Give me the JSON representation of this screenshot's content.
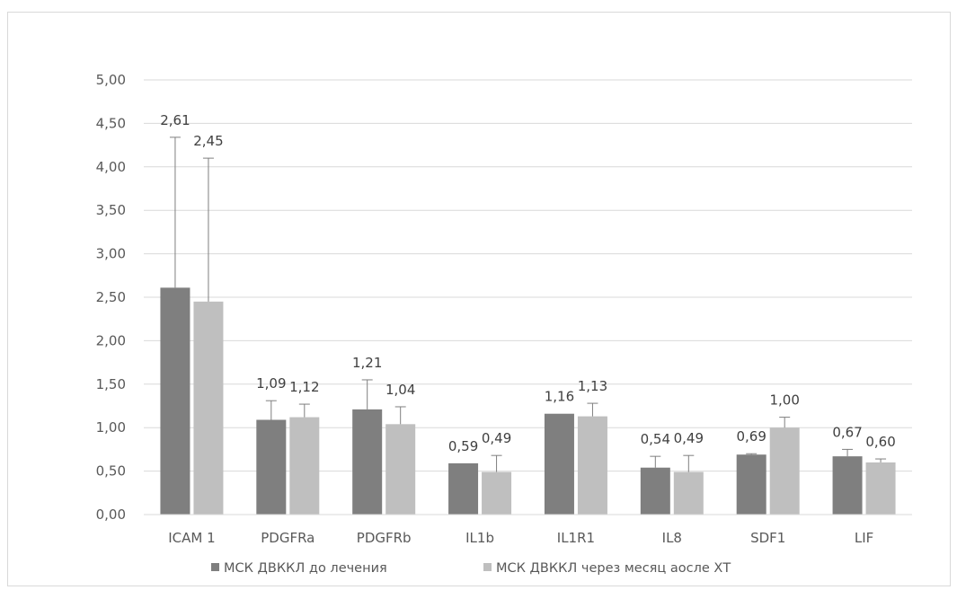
{
  "chart_data": {
    "type": "bar",
    "categories": [
      "ICAM 1",
      "PDGFRa",
      "PDGFRb",
      "IL1b",
      "IL1R1",
      "IL8",
      "SDF1",
      "LIF"
    ],
    "series": [
      {
        "name": "МСК ДВККЛ до лечения",
        "color": "#7f7f7f",
        "values": [
          2.61,
          1.09,
          1.21,
          0.59,
          1.16,
          0.54,
          0.69,
          0.67
        ],
        "labels": [
          "2,61",
          "1,09",
          "1,21",
          "0,59",
          "1,16",
          "0,54",
          "0,69",
          "0,67"
        ],
        "error": [
          1.73,
          0.22,
          0.34,
          0.0,
          0.0,
          0.13,
          0.01,
          0.08
        ]
      },
      {
        "name": "МСК ДВККЛ через месяц аосле ХТ",
        "color": "#bfbfbf",
        "values": [
          2.45,
          1.12,
          1.04,
          0.49,
          1.13,
          0.49,
          1.0,
          0.6
        ],
        "labels": [
          "2,45",
          "1,12",
          "1,04",
          "0,49",
          "1,13",
          "0,49",
          "1,00",
          "0,60"
        ],
        "error": [
          1.65,
          0.15,
          0.2,
          0.19,
          0.15,
          0.19,
          0.12,
          0.04
        ]
      }
    ],
    "ylim": [
      0,
      5
    ],
    "yticks": [
      "0,00",
      "0,50",
      "1,00",
      "1,50",
      "2,00",
      "2,50",
      "3,00",
      "3,50",
      "4,00",
      "4,50",
      "5,00"
    ],
    "grid": true,
    "legend": "bottom",
    "title": "",
    "xlabel": "",
    "ylabel": ""
  }
}
